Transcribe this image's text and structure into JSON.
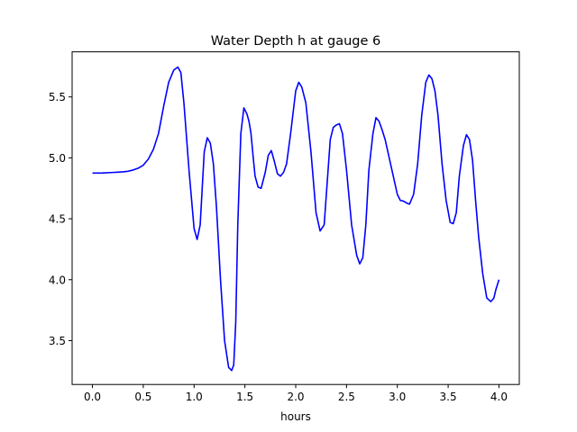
{
  "chart_data": {
    "type": "line",
    "title": "Water Depth h at gauge 6",
    "xlabel": "hours",
    "ylabel": "",
    "xlim": [
      -0.2,
      4.2
    ],
    "ylim": [
      3.14,
      5.87
    ],
    "xticks": [
      0.0,
      0.5,
      1.0,
      1.5,
      2.0,
      2.5,
      3.0,
      3.5,
      4.0
    ],
    "xtick_labels": [
      "0.0",
      "0.5",
      "1.0",
      "1.5",
      "2.0",
      "2.5",
      "3.0",
      "3.5",
      "4.0"
    ],
    "yticks": [
      3.5,
      4.0,
      4.5,
      5.0,
      5.5
    ],
    "ytick_labels": [
      "3.5",
      "4.0",
      "4.5",
      "5.0",
      "5.5"
    ],
    "grid": false,
    "series": [
      {
        "color": "#0000ff",
        "x": [
          0.0,
          0.1,
          0.2,
          0.3,
          0.35,
          0.4,
          0.45,
          0.5,
          0.55,
          0.6,
          0.65,
          0.7,
          0.75,
          0.8,
          0.84,
          0.87,
          0.9,
          0.95,
          1.0,
          1.03,
          1.06,
          1.08,
          1.1,
          1.13,
          1.16,
          1.19,
          1.22,
          1.26,
          1.3,
          1.34,
          1.37,
          1.39,
          1.41,
          1.43,
          1.46,
          1.49,
          1.52,
          1.54,
          1.56,
          1.58,
          1.6,
          1.63,
          1.66,
          1.7,
          1.73,
          1.76,
          1.79,
          1.82,
          1.85,
          1.88,
          1.91,
          1.95,
          2.0,
          2.03,
          2.06,
          2.1,
          2.15,
          2.2,
          2.24,
          2.28,
          2.31,
          2.34,
          2.37,
          2.4,
          2.43,
          2.46,
          2.5,
          2.55,
          2.6,
          2.63,
          2.66,
          2.69,
          2.72,
          2.76,
          2.79,
          2.82,
          2.85,
          2.88,
          2.92,
          2.96,
          3.0,
          3.03,
          3.06,
          3.09,
          3.12,
          3.16,
          3.2,
          3.24,
          3.28,
          3.31,
          3.34,
          3.37,
          3.4,
          3.44,
          3.48,
          3.52,
          3.55,
          3.58,
          3.61,
          3.65,
          3.68,
          3.71,
          3.74,
          3.77,
          3.8,
          3.84,
          3.88,
          3.92,
          3.95,
          3.97,
          4.0
        ],
        "y": [
          4.875,
          4.876,
          4.88,
          4.885,
          4.89,
          4.9,
          4.915,
          4.94,
          4.99,
          5.07,
          5.2,
          5.42,
          5.62,
          5.72,
          5.745,
          5.7,
          5.45,
          4.9,
          4.42,
          4.33,
          4.45,
          4.75,
          5.05,
          5.165,
          5.12,
          4.95,
          4.6,
          4.0,
          3.5,
          3.28,
          3.255,
          3.3,
          3.65,
          4.45,
          5.2,
          5.41,
          5.36,
          5.3,
          5.2,
          5.02,
          4.85,
          4.76,
          4.75,
          4.88,
          5.02,
          5.06,
          4.97,
          4.87,
          4.85,
          4.88,
          4.95,
          5.2,
          5.55,
          5.62,
          5.58,
          5.45,
          5.05,
          4.55,
          4.4,
          4.45,
          4.8,
          5.15,
          5.25,
          5.27,
          5.28,
          5.2,
          4.9,
          4.45,
          4.2,
          4.13,
          4.18,
          4.45,
          4.9,
          5.2,
          5.33,
          5.3,
          5.23,
          5.15,
          5.0,
          4.85,
          4.7,
          4.65,
          4.645,
          4.63,
          4.62,
          4.7,
          4.95,
          5.35,
          5.62,
          5.68,
          5.65,
          5.55,
          5.35,
          4.95,
          4.65,
          4.47,
          4.46,
          4.55,
          4.85,
          5.1,
          5.19,
          5.15,
          4.98,
          4.65,
          4.35,
          4.05,
          3.85,
          3.82,
          3.85,
          3.92,
          4.0
        ]
      }
    ]
  }
}
